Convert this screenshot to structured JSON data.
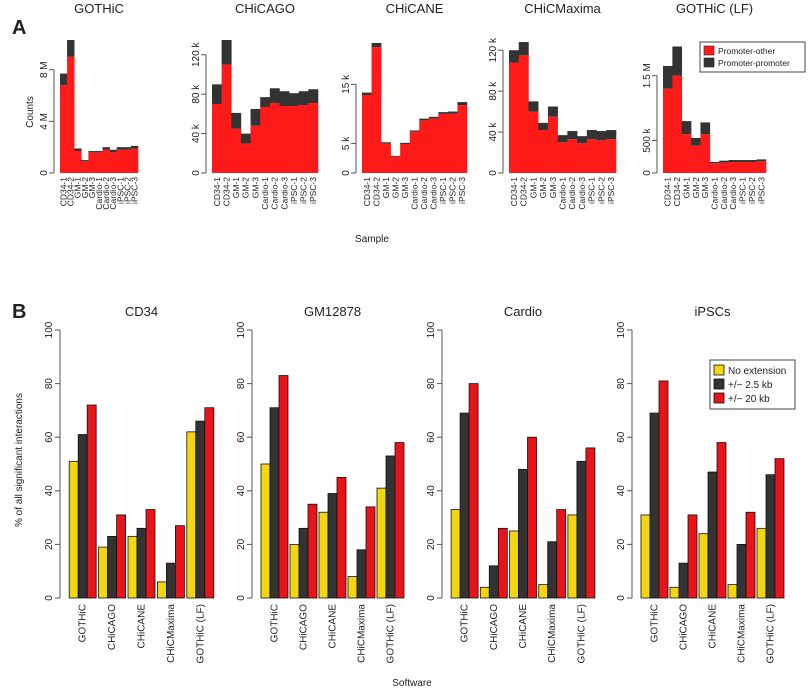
{
  "colors": {
    "promoter_other": "#ff1a1a",
    "promoter_promoter": "#333333",
    "no_extension": "#f2d612",
    "ext_2_5kb": "#333333",
    "ext_20kb": "#e8141a",
    "axis": "#555555",
    "text": "#222222"
  },
  "panels": {
    "a_label": "A",
    "b_label": "B",
    "a_ylabel": "Counts",
    "a_xlabel": "Sample",
    "b_ylabel": "% of all significant interactions",
    "b_xlabel": "Software"
  },
  "chart_data": [
    {
      "type": "bar",
      "stacked": true,
      "title": "GOTHiC",
      "categories": [
        "CD34-1",
        "CD34-2",
        "GM-1",
        "GM-2",
        "GM-3",
        "Cardio-1",
        "Cardio-2",
        "Cardio-3",
        "iPSC-1",
        "iPSC-2",
        "iPSC-3"
      ],
      "series": [
        {
          "name": "Promoter-other",
          "values": [
            6.8,
            9.0,
            1.7,
            0.9,
            1.6,
            1.6,
            1.8,
            1.6,
            1.8,
            1.8,
            1.9
          ]
        },
        {
          "name": "Promoter-promoter",
          "values": [
            0.9,
            1.3,
            0.2,
            0.1,
            0.1,
            0.1,
            0.2,
            0.2,
            0.2,
            0.2,
            0.2
          ]
        }
      ],
      "ylim": [
        0,
        10.3
      ],
      "yticks": [
        {
          "v": 0,
          "label": "0"
        },
        {
          "v": 4,
          "label": "4 M"
        },
        {
          "v": 8,
          "label": "8 M"
        }
      ]
    },
    {
      "type": "bar",
      "stacked": true,
      "title": "CHiCAGO",
      "categories": [
        "CD34-1",
        "CD34-2",
        "GM-1",
        "GM-2",
        "GM-3",
        "Cardio-1",
        "Cardio-2",
        "Cardio-3",
        "iPSC-1",
        "iPSC-2",
        "iPSC-3"
      ],
      "series": [
        {
          "name": "Promoter-other",
          "values": [
            70,
            110,
            45,
            30,
            48,
            67,
            71,
            68,
            68,
            69,
            71
          ]
        },
        {
          "name": "Promoter-promoter",
          "values": [
            20,
            25,
            16,
            10,
            17,
            10,
            15,
            15,
            13,
            14,
            14
          ]
        }
      ],
      "ylim": [
        0,
        135
      ],
      "yticks": [
        {
          "v": 0,
          "label": "0"
        },
        {
          "v": 40,
          "label": "40 k"
        },
        {
          "v": 80,
          "label": "80 k"
        },
        {
          "v": 120,
          "label": "120 k"
        }
      ]
    },
    {
      "type": "bar",
      "stacked": true,
      "title": "CHiCANE",
      "categories": [
        "CD34-1",
        "CD34-2",
        "GM-1",
        "GM-2",
        "GM-3",
        "Cardio-1",
        "Cardio-2",
        "Cardio-3",
        "iPSC-1",
        "iPSC-2",
        "iPSC-3"
      ],
      "series": [
        {
          "name": "Promoter-other",
          "values": [
            13.2,
            21.3,
            5.0,
            2.8,
            4.9,
            7.0,
            8.9,
            9.2,
            10.0,
            10.0,
            11.5
          ]
        },
        {
          "name": "Promoter-promoter",
          "values": [
            0.4,
            0.7,
            0.2,
            0.1,
            0.2,
            0.2,
            0.3,
            0.3,
            0.3,
            0.4,
            0.5
          ]
        }
      ],
      "ylim": [
        0,
        22.5
      ],
      "yticks": [
        {
          "v": 0,
          "label": "0"
        },
        {
          "v": 5,
          "label": "5 k"
        },
        {
          "v": 15,
          "label": "15 k"
        }
      ]
    },
    {
      "type": "bar",
      "stacked": true,
      "title": "CHiCMaxima",
      "categories": [
        "CD34-1",
        "CD34-2",
        "GM-1",
        "GM-2",
        "GM-3",
        "Cardio-1",
        "Cardio-2",
        "Cardio-3",
        "iPSC-1",
        "iPSC-2",
        "iPSC-3"
      ],
      "series": [
        {
          "name": "Promoter-other",
          "values": [
            108,
            115,
            60,
            42,
            55,
            30,
            33,
            29,
            33,
            32,
            33
          ]
        },
        {
          "name": "Promoter-promoter",
          "values": [
            12,
            13,
            10,
            7,
            10,
            7,
            8,
            7,
            9,
            9,
            9
          ]
        }
      ],
      "ylim": [
        0,
        130
      ],
      "yticks": [
        {
          "v": 0,
          "label": "0"
        },
        {
          "v": 40,
          "label": "40 k"
        },
        {
          "v": 80,
          "label": "80 k"
        },
        {
          "v": 120,
          "label": "120 k"
        }
      ]
    },
    {
      "type": "bar",
      "stacked": true,
      "title": "GOTHiC (LF)",
      "categories": [
        "CD34-1",
        "CD34-2",
        "GM-1",
        "GM-2",
        "GM-3",
        "Cardio-1",
        "Cardio-2",
        "Cardio-3",
        "iPSC-1",
        "iPSC-2",
        "iPSC-3"
      ],
      "series": [
        {
          "name": "Promoter-other",
          "values": [
            1.3,
            1.5,
            0.6,
            0.42,
            0.6,
            0.15,
            0.16,
            0.17,
            0.17,
            0.17,
            0.18
          ]
        },
        {
          "name": "Promoter-promoter",
          "values": [
            0.35,
            0.45,
            0.2,
            0.12,
            0.18,
            0.02,
            0.03,
            0.03,
            0.03,
            0.03,
            0.03
          ]
        }
      ],
      "ylim": [
        0,
        2.05
      ],
      "yticks": [
        {
          "v": 0,
          "label": "0"
        },
        {
          "v": 0.5,
          "label": "500 k"
        },
        {
          "v": 1.5,
          "label": "1.5 M"
        }
      ],
      "legend": {
        "position": "top-right",
        "entries": [
          "Promoter-other",
          "Promoter-promoter"
        ]
      }
    },
    {
      "type": "bar",
      "grouped": true,
      "title": "CD34",
      "categories": [
        "GOTHiC",
        "CHiCAGO",
        "CHiCANE",
        "CHiCMaxima",
        "GOTHiC (LF)"
      ],
      "series": [
        {
          "name": "No extension",
          "values": [
            51,
            19,
            23,
            6,
            62
          ]
        },
        {
          "name": "+/− 2.5 kb",
          "values": [
            61,
            23,
            26,
            13,
            66
          ]
        },
        {
          "name": "+/− 20 kb",
          "values": [
            72,
            31,
            33,
            27,
            71
          ]
        }
      ],
      "ylim": [
        0,
        100
      ],
      "yticks": [
        {
          "v": 0,
          "label": "0"
        },
        {
          "v": 20,
          "label": "20"
        },
        {
          "v": 40,
          "label": "40"
        },
        {
          "v": 60,
          "label": "60"
        },
        {
          "v": 80,
          "label": "80"
        },
        {
          "v": 100,
          "label": "100"
        }
      ]
    },
    {
      "type": "bar",
      "grouped": true,
      "title": "GM12878",
      "categories": [
        "GOTHiC",
        "CHiCAGO",
        "CHiCANE",
        "CHiCMaxima",
        "GOTHiC (LF)"
      ],
      "series": [
        {
          "name": "No extension",
          "values": [
            50,
            20,
            32,
            8,
            41
          ]
        },
        {
          "name": "+/− 2.5 kb",
          "values": [
            71,
            26,
            39,
            18,
            53
          ]
        },
        {
          "name": "+/− 20 kb",
          "values": [
            83,
            35,
            45,
            34,
            58
          ]
        }
      ],
      "ylim": [
        0,
        100
      ],
      "yticks": [
        {
          "v": 0,
          "label": "0"
        },
        {
          "v": 20,
          "label": "20"
        },
        {
          "v": 40,
          "label": "40"
        },
        {
          "v": 60,
          "label": "60"
        },
        {
          "v": 80,
          "label": "80"
        },
        {
          "v": 100,
          "label": "100"
        }
      ]
    },
    {
      "type": "bar",
      "grouped": true,
      "title": "Cardio",
      "categories": [
        "GOTHiC",
        "CHiCAGO",
        "CHiCANE",
        "CHiCMaxima",
        "GOTHiC (LF)"
      ],
      "series": [
        {
          "name": "No extension",
          "values": [
            33,
            4,
            25,
            5,
            31
          ]
        },
        {
          "name": "+/− 2.5 kb",
          "values": [
            69,
            12,
            48,
            21,
            51
          ]
        },
        {
          "name": "+/− 20 kb",
          "values": [
            80,
            26,
            60,
            33,
            56
          ]
        }
      ],
      "ylim": [
        0,
        100
      ],
      "yticks": [
        {
          "v": 0,
          "label": "0"
        },
        {
          "v": 20,
          "label": "20"
        },
        {
          "v": 40,
          "label": "40"
        },
        {
          "v": 60,
          "label": "60"
        },
        {
          "v": 80,
          "label": "80"
        },
        {
          "v": 100,
          "label": "100"
        }
      ]
    },
    {
      "type": "bar",
      "grouped": true,
      "title": "iPSCs",
      "categories": [
        "GOTHiC",
        "CHiCAGO",
        "CHiCANE",
        "CHiCMaxima",
        "GOTHiC (LF)"
      ],
      "series": [
        {
          "name": "No extension",
          "values": [
            31,
            4,
            24,
            5,
            26
          ]
        },
        {
          "name": "+/− 2.5 kb",
          "values": [
            69,
            13,
            47,
            20,
            46
          ]
        },
        {
          "name": "+/− 20 kb",
          "values": [
            81,
            31,
            58,
            32,
            52
          ]
        }
      ],
      "ylim": [
        0,
        100
      ],
      "yticks": [
        {
          "v": 0,
          "label": "0"
        },
        {
          "v": 20,
          "label": "20"
        },
        {
          "v": 40,
          "label": "40"
        },
        {
          "v": 60,
          "label": "60"
        },
        {
          "v": 80,
          "label": "80"
        },
        {
          "v": 100,
          "label": "100"
        }
      ],
      "legend": {
        "position": "top-right",
        "entries": [
          "No extension",
          "+/− 2.5 kb",
          "+/− 20 kb"
        ]
      }
    }
  ]
}
